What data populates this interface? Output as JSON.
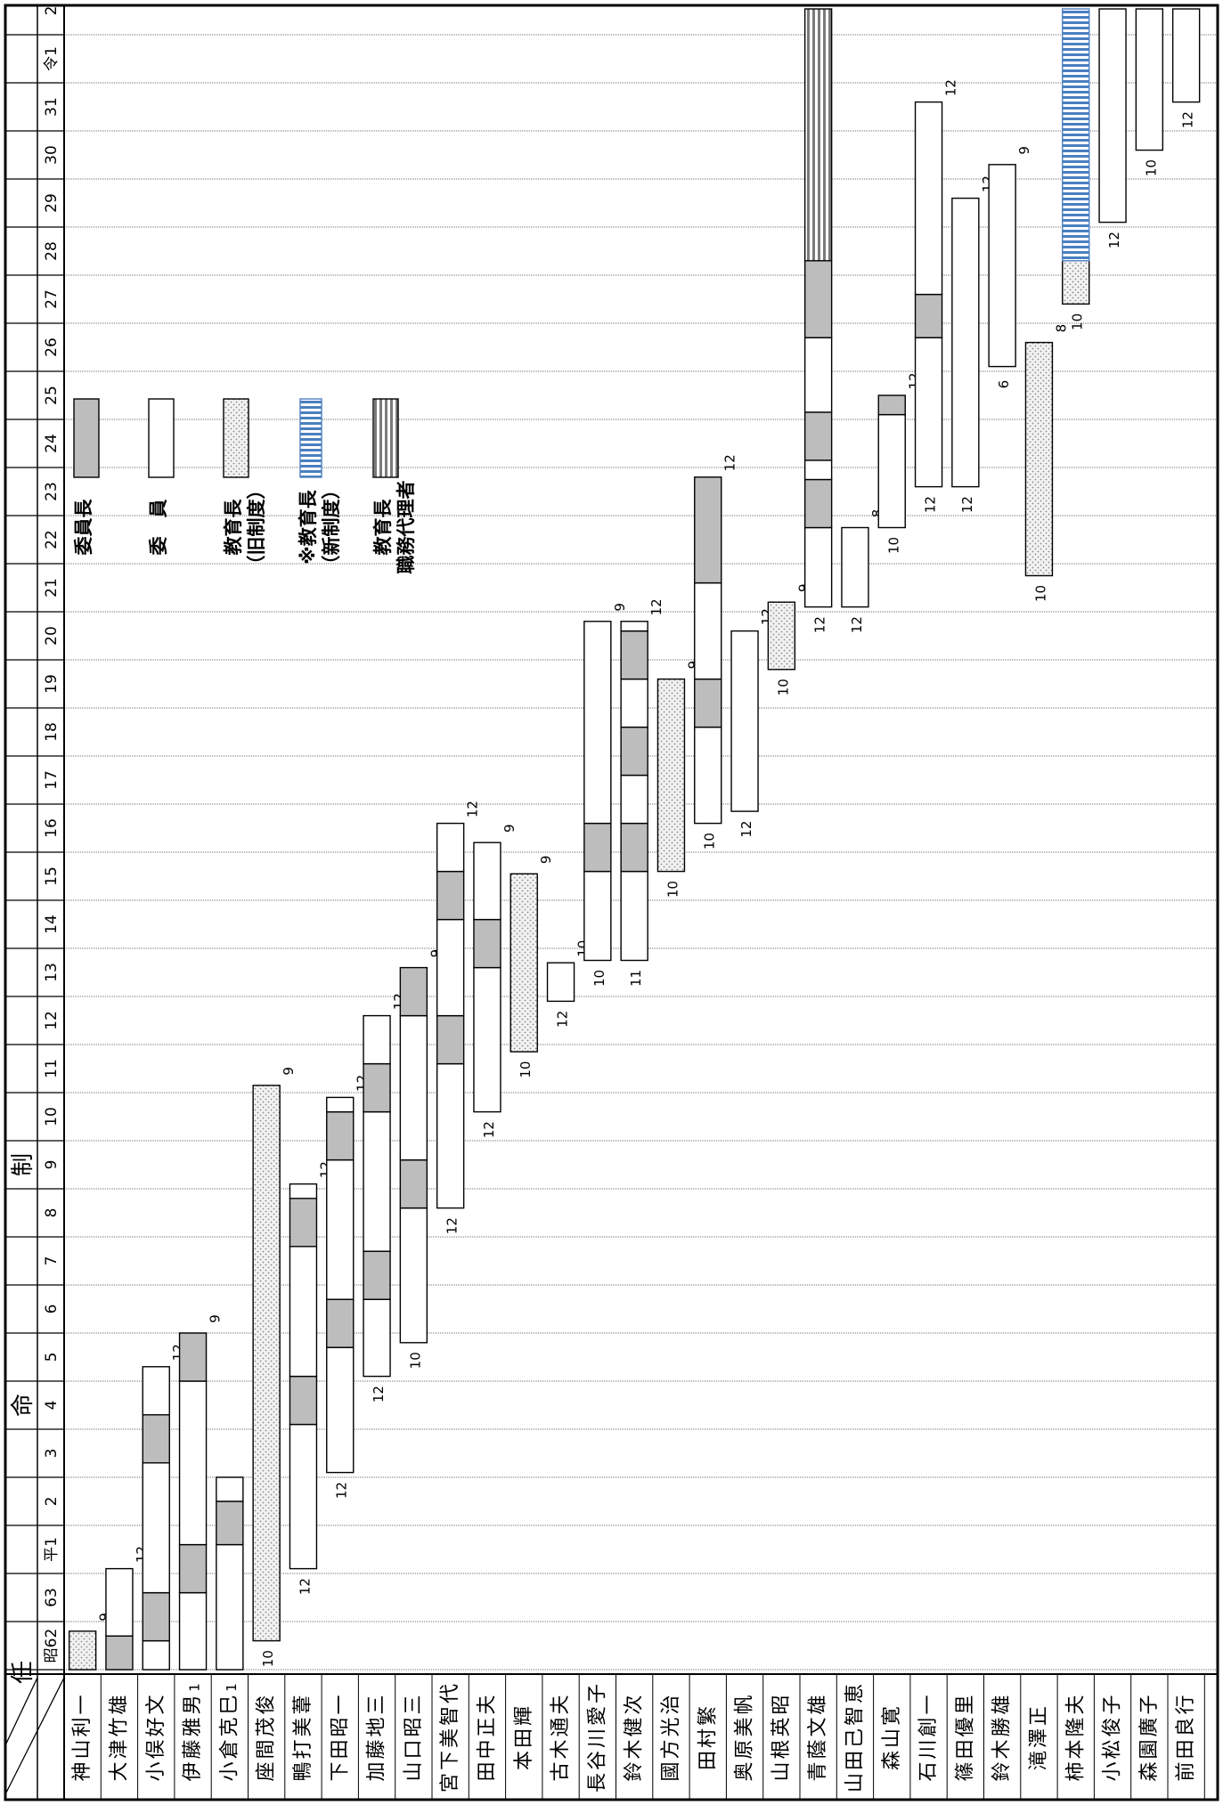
{
  "header": {
    "title_left": "任",
    "title_mid": "命",
    "title_right": "制"
  },
  "years": [
    "昭62",
    "63",
    "平1",
    "2",
    "3",
    "4",
    "5",
    "6",
    "7",
    "8",
    "9",
    "10",
    "11",
    "12",
    "13",
    "14",
    "15",
    "16",
    "17",
    "18",
    "19",
    "20",
    "21",
    "22",
    "23",
    "24",
    "25",
    "26",
    "27",
    "28",
    "29",
    "30",
    "31",
    "令1",
    "2"
  ],
  "people": [
    "神山利一",
    "大津竹雄",
    "小俣好文",
    "伊藤雅男",
    "小倉克巳",
    "座間茂俊",
    "鴨打美葦",
    "下田昭一",
    "加藤地三",
    "山口昭三",
    "宮下美智代",
    "田中正夫",
    "本田輝",
    "古木通夫",
    "長谷川愛子",
    "鈴木健次",
    "國方光治",
    "田村繁",
    "奥原美帆",
    "山根英昭",
    "青蔭文雄",
    "山田己智恵",
    "森山寛",
    "石川創一",
    "篠田優里",
    "鈴木勝雄",
    "滝澤正",
    "柿本隆夫",
    "小松俊子",
    "森園廣子",
    "前田良行"
  ],
  "legend": [
    {
      "type": "chair",
      "label": "委員長"
    },
    {
      "type": "member",
      "label": "委　員"
    },
    {
      "type": "edu_old",
      "label": "教育長\n（旧制度）"
    },
    {
      "type": "edu_new",
      "label": "※教育長\n（新制度）"
    },
    {
      "type": "acting",
      "label": "教育長\n職務代理者"
    }
  ],
  "terms": [
    {
      "p": 0,
      "s": [
        {
          "t": "edu_old",
          "a": 0,
          "b": 0.8
        }
      ],
      "top": "9"
    },
    {
      "p": 1,
      "s": [
        {
          "t": "chair",
          "a": 0,
          "b": 0.7
        },
        {
          "t": "member",
          "a": 0.7,
          "b": 2.1
        }
      ],
      "top": "12"
    },
    {
      "p": 2,
      "s": [
        {
          "t": "member",
          "a": 0,
          "b": 0.6
        },
        {
          "t": "chair",
          "a": 0.6,
          "b": 1.6
        },
        {
          "t": "member",
          "a": 1.6,
          "b": 4.3
        },
        {
          "t": "chair",
          "a": 4.3,
          "b": 5.3
        },
        {
          "t": "member",
          "a": 5.3,
          "b": 6.3
        }
      ],
      "top": "12"
    },
    {
      "p": 3,
      "s": [
        {
          "t": "member",
          "a": 0,
          "b": 1.6
        },
        {
          "t": "chair",
          "a": 1.6,
          "b": 2.6
        },
        {
          "t": "member",
          "a": 2.6,
          "b": 6.0
        },
        {
          "t": "chair",
          "a": 6.0,
          "b": 7.0
        }
      ],
      "top": "9",
      "bottom": "1"
    },
    {
      "p": 4,
      "s": [
        {
          "t": "member",
          "a": 0,
          "b": 2.6
        },
        {
          "t": "chair",
          "a": 2.6,
          "b": 3.5
        },
        {
          "t": "member",
          "a": 3.5,
          "b": 4.0
        }
      ],
      "bottom": "1"
    },
    {
      "p": 5,
      "s": [
        {
          "t": "edu_old",
          "a": 0.6,
          "b": 12.15
        }
      ],
      "top": "9",
      "bottom": "10"
    },
    {
      "p": 6,
      "s": [
        {
          "t": "member",
          "a": 2.1,
          "b": 5.1
        },
        {
          "t": "chair",
          "a": 5.1,
          "b": 6.1
        },
        {
          "t": "member",
          "a": 6.1,
          "b": 8.8
        },
        {
          "t": "chair",
          "a": 8.8,
          "b": 9.8
        },
        {
          "t": "member",
          "a": 9.8,
          "b": 10.1
        }
      ],
      "top": "12",
      "bottom": "12"
    },
    {
      "p": 7,
      "s": [
        {
          "t": "member",
          "a": 4.1,
          "b": 6.7
        },
        {
          "t": "chair",
          "a": 6.7,
          "b": 7.7
        },
        {
          "t": "member",
          "a": 7.7,
          "b": 10.6
        },
        {
          "t": "chair",
          "a": 10.6,
          "b": 11.6
        },
        {
          "t": "member",
          "a": 11.6,
          "b": 11.9
        }
      ],
      "top": "12",
      "bottom": "12"
    },
    {
      "p": 8,
      "s": [
        {
          "t": "member",
          "a": 6.1,
          "b": 7.7
        },
        {
          "t": "chair",
          "a": 7.7,
          "b": 8.7
        },
        {
          "t": "member",
          "a": 8.7,
          "b": 11.6
        },
        {
          "t": "chair",
          "a": 11.6,
          "b": 12.6
        },
        {
          "t": "member",
          "a": 12.6,
          "b": 13.6
        }
      ],
      "top": "12",
      "bottom": "12"
    },
    {
      "p": 9,
      "s": [
        {
          "t": "member",
          "a": 6.8,
          "b": 9.6
        },
        {
          "t": "chair",
          "a": 9.6,
          "b": 10.6
        },
        {
          "t": "member",
          "a": 10.6,
          "b": 13.6
        },
        {
          "t": "chair",
          "a": 13.6,
          "b": 14.6
        }
      ],
      "top": "9",
      "bottom": "10"
    },
    {
      "p": 10,
      "s": [
        {
          "t": "member",
          "a": 9.6,
          "b": 12.6
        },
        {
          "t": "chair",
          "a": 12.6,
          "b": 13.6
        },
        {
          "t": "member",
          "a": 13.6,
          "b": 15.6
        },
        {
          "t": "chair",
          "a": 15.6,
          "b": 16.6
        },
        {
          "t": "member",
          "a": 16.6,
          "b": 17.6
        }
      ],
      "top": "12",
      "bottom": "12"
    },
    {
      "p": 11,
      "s": [
        {
          "t": "member",
          "a": 11.6,
          "b": 14.6
        },
        {
          "t": "chair",
          "a": 14.6,
          "b": 15.6
        },
        {
          "t": "member",
          "a": 15.6,
          "b": 17.2
        }
      ],
      "top": "9",
      "bottom": "12"
    },
    {
      "p": 12,
      "s": [
        {
          "t": "edu_old",
          "a": 12.85,
          "b": 16.55
        }
      ],
      "top": "9",
      "bottom": "10"
    },
    {
      "p": 13,
      "s": [
        {
          "t": "member",
          "a": 13.9,
          "b": 14.7
        }
      ],
      "top": "10",
      "bottom": "12"
    },
    {
      "p": 14,
      "s": [
        {
          "t": "member",
          "a": 14.75,
          "b": 16.6
        },
        {
          "t": "chair",
          "a": 16.6,
          "b": 17.6
        },
        {
          "t": "member",
          "a": 17.6,
          "b": 21.8
        }
      ],
      "top": "9",
      "bottom": "10"
    },
    {
      "p": 15,
      "s": [
        {
          "t": "member",
          "a": 14.75,
          "b": 16.6
        },
        {
          "t": "chair",
          "a": 16.6,
          "b": 17.6
        },
        {
          "t": "member",
          "a": 17.6,
          "b": 18.6
        },
        {
          "t": "chair",
          "a": 18.6,
          "b": 19.6
        },
        {
          "t": "member",
          "a": 19.6,
          "b": 20.6
        },
        {
          "t": "chair",
          "a": 20.6,
          "b": 21.6
        },
        {
          "t": "member",
          "a": 21.6,
          "b": 21.8
        }
      ],
      "top": "12",
      "bottom": "11"
    },
    {
      "p": 16,
      "s": [
        {
          "t": "edu_old",
          "a": 16.6,
          "b": 20.6
        }
      ],
      "top": "9",
      "bottom": "10"
    },
    {
      "p": 17,
      "s": [
        {
          "t": "member",
          "a": 17.6,
          "b": 19.6
        },
        {
          "t": "chair",
          "a": 19.6,
          "b": 20.6
        },
        {
          "t": "member",
          "a": 20.6,
          "b": 22.6
        },
        {
          "t": "chair",
          "a": 22.6,
          "b": 24.8
        }
      ],
      "top": "12",
      "bottom": "10"
    },
    {
      "p": 18,
      "s": [
        {
          "t": "member",
          "a": 17.85,
          "b": 21.6
        }
      ],
      "top": "12",
      "bottom": "12"
    },
    {
      "p": 19,
      "s": [
        {
          "t": "edu_old",
          "a": 20.8,
          "b": 22.2
        }
      ],
      "top": "9",
      "bottom": "10"
    },
    {
      "p": 20,
      "s": [
        {
          "t": "member",
          "a": 22.1,
          "b": 23.75
        },
        {
          "t": "chair",
          "a": 23.75,
          "b": 24.75
        },
        {
          "t": "member",
          "a": 24.75,
          "b": 25.15
        },
        {
          "t": "chair",
          "a": 25.15,
          "b": 26.15
        },
        {
          "t": "member",
          "a": 26.15,
          "b": 27.7
        },
        {
          "t": "chair",
          "a": 27.7,
          "b": 29.3
        },
        {
          "t": "acting",
          "a": 29.3,
          "b": 35.5
        }
      ],
      "bottom": "12"
    },
    {
      "p": 21,
      "s": [
        {
          "t": "member",
          "a": 22.1,
          "b": 23.75
        }
      ],
      "top": "8",
      "bottom": "12"
    },
    {
      "p": 22,
      "s": [
        {
          "t": "member",
          "a": 23.75,
          "b": 26.1
        },
        {
          "t": "chair",
          "a": 26.1,
          "b": 26.5
        }
      ],
      "top": "12",
      "bottom": "10"
    },
    {
      "p": 23,
      "s": [
        {
          "t": "member",
          "a": 24.6,
          "b": 27.7
        },
        {
          "t": "chair",
          "a": 27.7,
          "b": 28.6
        },
        {
          "t": "member",
          "a": 28.6,
          "b": 32.6
        }
      ],
      "top": "12",
      "bottom": "12"
    },
    {
      "p": 24,
      "s": [
        {
          "t": "member",
          "a": 24.6,
          "b": 30.6
        }
      ],
      "top": "12",
      "bottom": "12"
    },
    {
      "p": 25,
      "s": [
        {
          "t": "member",
          "a": 27.1,
          "b": 31.3
        }
      ],
      "top": "9",
      "bottom": "6"
    },
    {
      "p": 26,
      "s": [
        {
          "t": "edu_old",
          "a": 22.75,
          "b": 27.6
        }
      ],
      "top": "8",
      "bottom": "10"
    },
    {
      "p": 27,
      "s": [
        {
          "t": "edu_old",
          "a": 28.4,
          "b": 29.3
        },
        {
          "t": "edu_new",
          "a": 29.3,
          "b": 35.5
        }
      ],
      "bottom": "10"
    },
    {
      "p": 28,
      "s": [
        {
          "t": "member",
          "a": 30.1,
          "b": 35.5
        }
      ],
      "bottom": "12"
    },
    {
      "p": 29,
      "s": [
        {
          "t": "member",
          "a": 31.6,
          "b": 35.5
        }
      ],
      "bottom": "10"
    },
    {
      "p": 30,
      "s": [
        {
          "t": "member",
          "a": 32.6,
          "b": 35.5
        }
      ],
      "bottom": "12"
    }
  ],
  "colors": {
    "chair": "#bdbdbd",
    "member": "#ffffff",
    "edu_old": "#e6e6e6",
    "edu_new": "#4a7fc0",
    "acting": "#8c8c8c",
    "border": "#000000",
    "grid": "#b8b8b8"
  }
}
